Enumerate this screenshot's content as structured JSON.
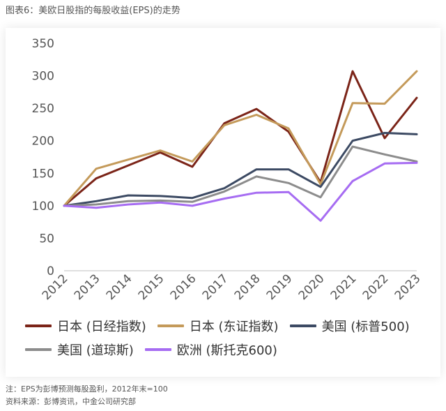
{
  "figure_title": "图表6：美欧日股指的每股收益(EPS)的走势",
  "chart_data": {
    "type": "line",
    "title": "美欧日股指的每股收益(EPS)的走势",
    "categories": [
      "2012",
      "2013",
      "2014",
      "2015",
      "2016",
      "2017",
      "2018",
      "2019",
      "2020",
      "2021",
      "2022",
      "2023"
    ],
    "ylim": [
      0,
      350
    ],
    "yticks": [
      0,
      50,
      100,
      150,
      200,
      250,
      300,
      350
    ],
    "grid": false,
    "legend_position": "bottom",
    "series": [
      {
        "name": "日本 (日经指数)",
        "color": "#7b2418",
        "values": [
          100,
          142,
          162,
          182,
          160,
          227,
          249,
          214,
          136,
          307,
          204,
          266
        ]
      },
      {
        "name": "日本 (东证指数)",
        "color": "#c49a5a",
        "values": [
          100,
          157,
          171,
          185,
          168,
          224,
          240,
          219,
          133,
          258,
          257,
          307
        ]
      },
      {
        "name": "美国 (标普500)",
        "color": "#3c4a63",
        "values": [
          100,
          107,
          116,
          115,
          112,
          127,
          156,
          156,
          129,
          200,
          212,
          210
        ]
      },
      {
        "name": "美国 (道琼斯)",
        "color": "#8c8c8c",
        "values": [
          100,
          102,
          107,
          108,
          106,
          122,
          145,
          135,
          113,
          191,
          179,
          168
        ]
      },
      {
        "name": "欧洲 (斯托克600)",
        "color": "#a66cf2",
        "values": [
          100,
          97,
          102,
          105,
          100,
          111,
          120,
          121,
          77,
          138,
          165,
          166
        ]
      }
    ]
  },
  "footnotes": {
    "note": "注：EPS为彭博预测每股盈利，2012年末=100",
    "source": "资料来源：彭博资讯，中金公司研究部"
  }
}
